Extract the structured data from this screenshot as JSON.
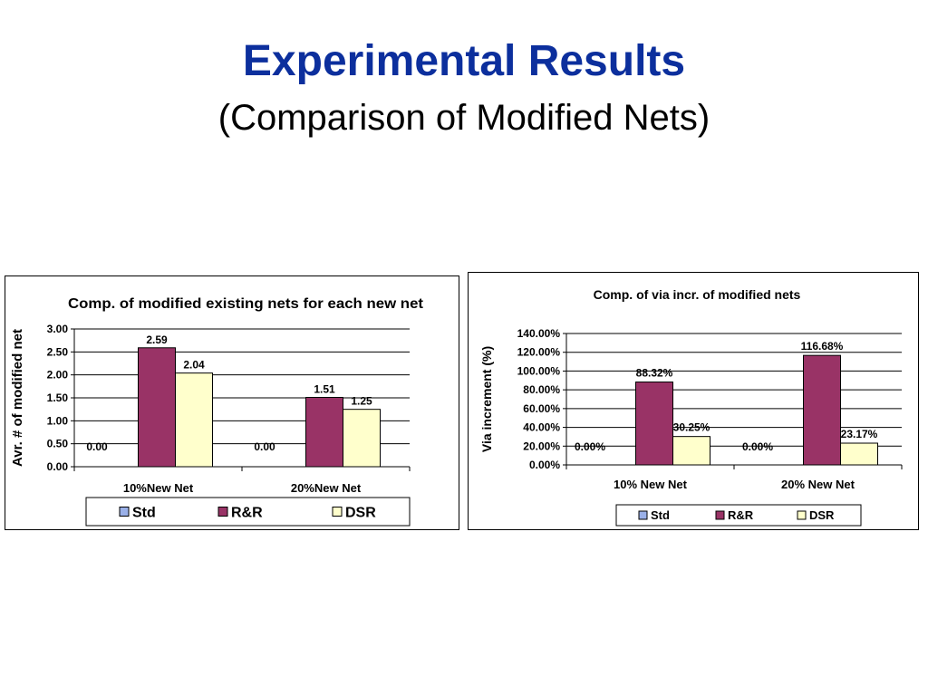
{
  "slide": {
    "title": "Experimental Results",
    "subtitle": "(Comparison of Modified Nets)"
  },
  "colors": {
    "Std": "#9ab0e8",
    "R&R": "#993366",
    "DSR": "#ffffcc"
  },
  "chart_data": [
    {
      "type": "bar",
      "title": "Comp. of modified existing nets for each new net",
      "xlabel": "",
      "ylabel": "Avr. # of modified net",
      "categories": [
        "10%New Net",
        "20%New Net"
      ],
      "series": [
        {
          "name": "Std",
          "values": [
            0.0,
            0.0
          ],
          "labels": [
            "0.00",
            "0.00"
          ]
        },
        {
          "name": "R&R",
          "values": [
            2.59,
            1.51
          ],
          "labels": [
            "2.59",
            "1.51"
          ]
        },
        {
          "name": "DSR",
          "values": [
            2.04,
            1.25
          ],
          "labels": [
            "2.04",
            "1.25"
          ]
        }
      ],
      "ylim": [
        0,
        3
      ],
      "yticks": [
        "0.00",
        "0.50",
        "1.00",
        "1.50",
        "2.00",
        "2.50",
        "3.00"
      ],
      "grid": true,
      "legend": "bottom"
    },
    {
      "type": "bar",
      "title": "Comp. of via incr. of modified nets",
      "xlabel": "",
      "ylabel": "Via increment (%)",
      "categories": [
        "10% New Net",
        "20% New Net"
      ],
      "series": [
        {
          "name": "Std",
          "values": [
            0.0,
            0.0
          ],
          "labels": [
            "0.00%",
            "0.00%"
          ]
        },
        {
          "name": "R&R",
          "values": [
            88.32,
            116.68
          ],
          "labels": [
            "88.32%",
            "116.68%"
          ]
        },
        {
          "name": "DSR",
          "values": [
            30.25,
            23.17
          ],
          "labels": [
            "30.25%",
            "23.17%"
          ]
        }
      ],
      "ylim": [
        0,
        140
      ],
      "yticks": [
        "0.00%",
        "20.00%",
        "40.00%",
        "60.00%",
        "80.00%",
        "100.00%",
        "120.00%",
        "140.00%"
      ],
      "grid": true,
      "legend": "bottom"
    }
  ]
}
